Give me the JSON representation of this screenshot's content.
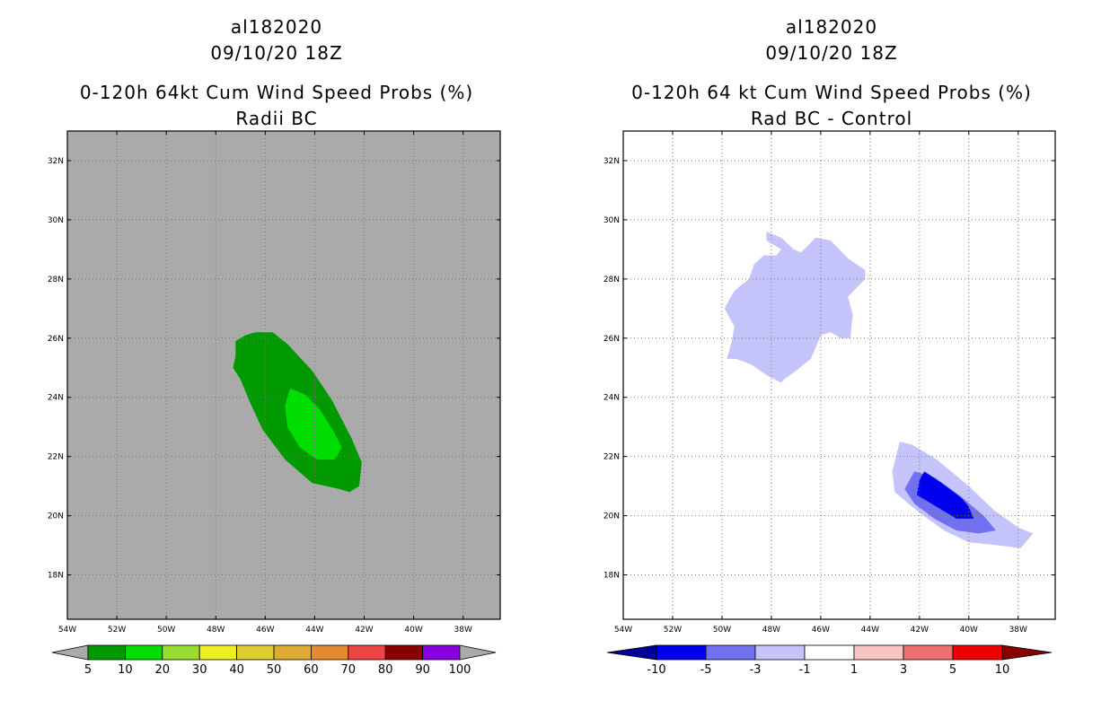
{
  "chart_data": [
    {
      "type": "heatmap",
      "storm_id": "al182020",
      "datetime": "09/10/20 18Z",
      "title": "0-120h 64kt Cum Wind Speed Probs (%)",
      "subtitle": "Radii BC",
      "xlabel": "",
      "ylabel": "",
      "xlim": [
        -54,
        -36.5
      ],
      "ylim": [
        16.5,
        33
      ],
      "x_ticks": [
        -54,
        -52,
        -50,
        -48,
        -46,
        -44,
        -42,
        -40,
        -38
      ],
      "x_tick_labels": [
        "54W",
        "52W",
        "50W",
        "48W",
        "46W",
        "44W",
        "42W",
        "40W",
        "38W"
      ],
      "y_ticks": [
        18,
        20,
        22,
        24,
        26,
        28,
        30,
        32
      ],
      "y_tick_labels": [
        "18N",
        "20N",
        "22N",
        "24N",
        "26N",
        "28N",
        "30N",
        "32N"
      ],
      "grid": true,
      "background_color": "#aaaaaa",
      "contours": [
        {
          "level": "5-10",
          "color": "#009900",
          "points": [
            [
              -47.2,
              25.9
            ],
            [
              -46.8,
              26.1
            ],
            [
              -46.4,
              26.2
            ],
            [
              -45.7,
              26.2
            ],
            [
              -45.1,
              25.8
            ],
            [
              -44.1,
              24.9
            ],
            [
              -43.3,
              23.9
            ],
            [
              -42.5,
              22.6
            ],
            [
              -42.1,
              21.8
            ],
            [
              -42.2,
              21.0
            ],
            [
              -42.6,
              20.8
            ],
            [
              -43.0,
              20.9
            ],
            [
              -44.1,
              21.1
            ],
            [
              -45.2,
              21.9
            ],
            [
              -46.1,
              22.9
            ],
            [
              -46.6,
              23.8
            ],
            [
              -47.0,
              24.6
            ],
            [
              -47.3,
              25.0
            ],
            [
              -47.2,
              25.4
            ]
          ]
        },
        {
          "level": "10-20",
          "color": "#00dd00",
          "points": [
            [
              -45.0,
              24.3
            ],
            [
              -44.4,
              24.1
            ],
            [
              -43.8,
              23.6
            ],
            [
              -43.2,
              22.8
            ],
            [
              -42.9,
              22.3
            ],
            [
              -43.2,
              21.9
            ],
            [
              -43.9,
              21.9
            ],
            [
              -44.6,
              22.3
            ],
            [
              -45.1,
              23.0
            ],
            [
              -45.2,
              23.7
            ]
          ]
        }
      ],
      "colorbar": {
        "levels": [
          "5",
          "10",
          "20",
          "30",
          "40",
          "50",
          "60",
          "70",
          "80",
          "90",
          "100"
        ],
        "colors": [
          "#009900",
          "#00dd00",
          "#99dd33",
          "#eeee22",
          "#e0cc33",
          "#ddaa33",
          "#e48a30",
          "#ee4444",
          "#880000",
          "#8800dd"
        ],
        "under_color": "#aaaaaa",
        "over_color": "#aaaaaa"
      }
    },
    {
      "type": "heatmap",
      "storm_id": "al182020",
      "datetime": "09/10/20 18Z",
      "title": "0-120h 64 kt Cum Wind Speed Probs (%)",
      "subtitle": "Rad BC - Control",
      "xlabel": "",
      "ylabel": "",
      "xlim": [
        -54,
        -36.5
      ],
      "ylim": [
        16.5,
        33
      ],
      "x_ticks": [
        -54,
        -52,
        -50,
        -48,
        -46,
        -44,
        -42,
        -40,
        -38
      ],
      "x_tick_labels": [
        "54W",
        "52W",
        "50W",
        "48W",
        "46W",
        "44W",
        "42W",
        "40W",
        "38W"
      ],
      "y_ticks": [
        18,
        20,
        22,
        24,
        26,
        28,
        30,
        32
      ],
      "y_tick_labels": [
        "18N",
        "20N",
        "22N",
        "24N",
        "26N",
        "28N",
        "30N",
        "32N"
      ],
      "grid": true,
      "background_color": "#ffffff",
      "contours": [
        {
          "level": "-3 to -1",
          "color": "#c4c4fa",
          "points": [
            [
              -48.2,
              29.6
            ],
            [
              -47.6,
              29.4
            ],
            [
              -47.1,
              29.0
            ],
            [
              -46.8,
              28.9
            ],
            [
              -46.2,
              29.4
            ],
            [
              -45.6,
              29.3
            ],
            [
              -44.9,
              28.7
            ],
            [
              -44.2,
              28.3
            ],
            [
              -44.2,
              28.0
            ],
            [
              -44.9,
              27.4
            ],
            [
              -44.7,
              26.8
            ],
            [
              -44.8,
              26.0
            ],
            [
              -45.2,
              26.0
            ],
            [
              -45.6,
              26.2
            ],
            [
              -46.0,
              26.1
            ],
            [
              -46.4,
              25.3
            ],
            [
              -47.0,
              24.9
            ],
            [
              -47.5,
              24.6
            ],
            [
              -47.6,
              24.5
            ],
            [
              -48.1,
              24.7
            ],
            [
              -48.8,
              25.1
            ],
            [
              -49.4,
              25.3
            ],
            [
              -49.8,
              25.3
            ],
            [
              -49.6,
              25.9
            ],
            [
              -49.5,
              26.4
            ],
            [
              -49.9,
              27.0
            ],
            [
              -49.5,
              27.6
            ],
            [
              -48.9,
              28.0
            ],
            [
              -48.7,
              28.5
            ],
            [
              -48.3,
              28.8
            ],
            [
              -47.8,
              28.8
            ],
            [
              -47.6,
              29.0
            ],
            [
              -48.2,
              29.3
            ]
          ]
        },
        {
          "level": "-3 to -1",
          "color": "#c4c4fa",
          "points": [
            [
              -42.8,
              22.5
            ],
            [
              -42.3,
              22.4
            ],
            [
              -41.3,
              21.9
            ],
            [
              -40.0,
              21.0
            ],
            [
              -39.0,
              20.2
            ],
            [
              -38.0,
              19.6
            ],
            [
              -37.4,
              19.4
            ],
            [
              -37.9,
              18.9
            ],
            [
              -38.8,
              19.0
            ],
            [
              -40.0,
              19.1
            ],
            [
              -41.0,
              19.5
            ],
            [
              -42.0,
              20.1
            ],
            [
              -43.0,
              20.8
            ],
            [
              -43.1,
              21.5
            ]
          ]
        },
        {
          "level": "-5 to -3",
          "color": "#7070f0",
          "points": [
            [
              -42.2,
              21.5
            ],
            [
              -41.4,
              21.3
            ],
            [
              -40.4,
              20.7
            ],
            [
              -39.4,
              20.0
            ],
            [
              -38.9,
              19.5
            ],
            [
              -39.6,
              19.4
            ],
            [
              -40.5,
              19.5
            ],
            [
              -41.4,
              19.9
            ],
            [
              -42.2,
              20.4
            ],
            [
              -42.6,
              20.9
            ]
          ]
        },
        {
          "level": "-10 to -5",
          "color": "#0000ee",
          "points": [
            [
              -41.8,
              21.5
            ],
            [
              -41.1,
              21.1
            ],
            [
              -40.3,
              20.6
            ],
            [
              -40.0,
              20.3
            ],
            [
              -39.8,
              19.9
            ],
            [
              -40.5,
              19.9
            ],
            [
              -41.3,
              20.3
            ],
            [
              -42.1,
              20.7
            ],
            [
              -42.0,
              21.2
            ]
          ]
        }
      ],
      "colorbar": {
        "levels": [
          "-10",
          "-5",
          "-3",
          "-1",
          "1",
          "3",
          "5",
          "10"
        ],
        "colors": [
          "#0000ee",
          "#7070f0",
          "#c4c4fa",
          "#ffffff",
          "#fac4c4",
          "#f07070",
          "#ee0000"
        ],
        "under_color": "#000099",
        "over_color": "#880000"
      }
    }
  ]
}
